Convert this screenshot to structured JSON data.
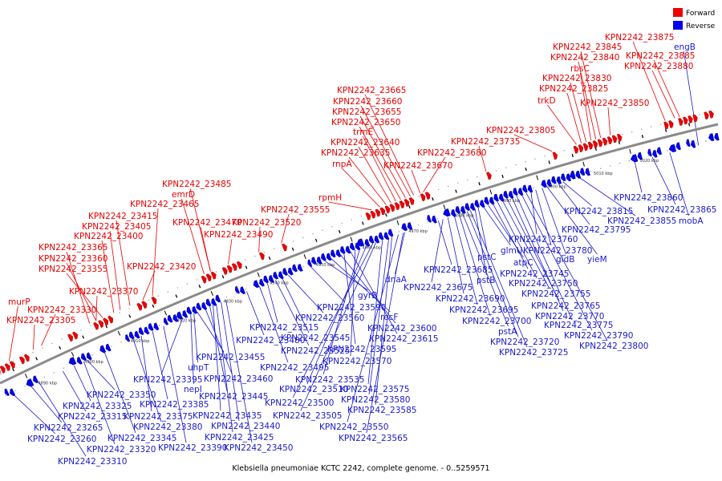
{
  "caption": "Klebsiella pneumoniae KCTC 2242, complete genome. - 0..5259571",
  "colors": {
    "forward": "#ee0000",
    "reverse": "#0000ee",
    "backbone": "#8a8a8a",
    "forward_label": "#e60000",
    "reverse_label": "#1a1acc"
  },
  "legend": [
    {
      "label": "Forward",
      "color": "#ee0000"
    },
    {
      "label": "Reverse",
      "color": "#0000ee"
    }
  ],
  "ticks": [
    "4890 kbp",
    "4900 kbp",
    "4910 kbp",
    "4920 kbp",
    "4930 kbp",
    "4940 kbp",
    "4950 kbp",
    "4960 kbp",
    "4970 kbp",
    "4980 kbp",
    "4990 kbp",
    "5000 kbp",
    "5010 kbp",
    "5020 kbp"
  ],
  "forward_labels": [
    "murP",
    "KPN2242_23330",
    "KPN2242_23305",
    "KPN2242_23370",
    "KPN2242_23365",
    "KPN2242_23360",
    "KPN2242_23355",
    "KPN2242_23400",
    "KPN2242_23405",
    "KPN2242_23415",
    "KPN2242_23465",
    "emrD",
    "KPN2242_23485",
    "KPN2242_23470",
    "KPN2242_23420",
    "KPN2242_23490",
    "KPN2242_23520",
    "KPN2242_23555",
    "rpmH",
    "rnpA",
    "KPN2242_23635",
    "KPN2242_23640",
    "trmE",
    "KPN2242_23650",
    "KPN2242_23655",
    "KPN2242_23660",
    "KPN2242_23665",
    "KPN2242_23670",
    "KPN2242_23680",
    "KPN2242_23735",
    "KPN2242_23805",
    "trkD",
    "KPN2242_23825",
    "KPN2242_23830",
    "rbsC",
    "KPN2242_23840",
    "KPN2242_23845",
    "KPN2242_23850",
    "KPN2242_23875",
    "KPN2242_23885",
    "KPN2242_23880"
  ],
  "reverse_labels": [
    "KPN2242_23260",
    "KPN2242_23265",
    "KPN2242_23315",
    "KPN2242_23325",
    "KPN2242_23350",
    "KPN2242_23310",
    "KPN2242_23320",
    "KPN2242_23345",
    "KPN2242_23380",
    "KPN2242_23375",
    "KPN2242_23385",
    "KPN2242_23390",
    "KPN2242_23395",
    "nepI",
    "uhpT",
    "KPN2242_23455",
    "KPN2242_23460",
    "KPN2242_23445",
    "KPN2242_23435",
    "KPN2242_23425",
    "KPN2242_23440",
    "KPN2242_23450",
    "KPN2242_23480",
    "KPN2242_23495",
    "KPN2242_23515",
    "KPN2242_23525",
    "KPN2242_23545",
    "KPN2242_23560",
    "KPN2242_23590",
    "gyrB",
    "recF",
    "KPN2242_23600",
    "KPN2242_23595",
    "KPN2242_23615",
    "KPN2242_23570",
    "KPN2242_23535",
    "KPN2242_23510",
    "KPN2242_23500",
    "KPN2242_23505",
    "KPN2242_23575",
    "KPN2242_23580",
    "KPN2242_23585",
    "KPN2242_23550",
    "KPN2242_23565",
    "dnaA",
    "KPN2242_23685",
    "KPN2242_23675",
    "KPN2242_23690",
    "KPN2242_23695",
    "KPN2242_23700",
    "pstA",
    "KPN2242_23720",
    "KPN2242_23725",
    "pstB",
    "pstC",
    "glmU",
    "atpC",
    "KPN2242_23745",
    "KPN2242_23750",
    "KPN2242_23755",
    "KPN2242_23765",
    "KPN2242_23770",
    "KPN2242_23775",
    "KPN2242_23790",
    "KPN2242_23800",
    "KPN2242_23760",
    "KPN2242_23780",
    "gidB",
    "yieM",
    "KPN2242_23795",
    "KPN2242_23815",
    "KPN2242_23855",
    "KPN2242_23860",
    "KPN2242_23865",
    "mobA",
    "engB"
  ]
}
